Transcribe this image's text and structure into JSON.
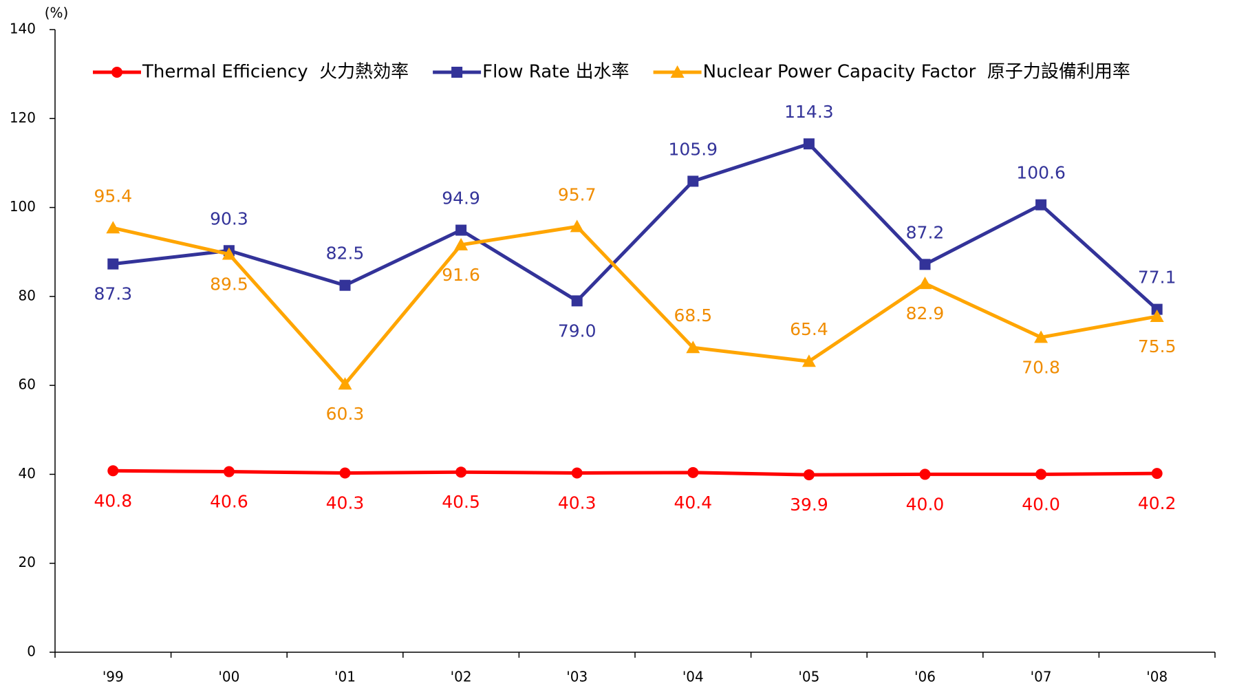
{
  "chart_data": {
    "type": "line",
    "y_label": "(%)",
    "categories": [
      "'99",
      "'00",
      "'01",
      "'02",
      "'03",
      "'04",
      "'05",
      "'06",
      "'07",
      "'08"
    ],
    "series": [
      {
        "name": "Thermal Efficiency  火力熱効率",
        "color": "#ff0000",
        "marker": "circle",
        "values": [
          40.8,
          40.6,
          40.3,
          40.5,
          40.3,
          40.4,
          39.9,
          40.0,
          40.0,
          40.2
        ],
        "value_labels": [
          "40.8",
          "40.6",
          "40.3",
          "40.5",
          "40.3",
          "40.4",
          "39.9",
          "40.0",
          "40.0",
          "40.2"
        ]
      },
      {
        "name": "Flow Rate 出水率",
        "color": "#333399",
        "marker": "square",
        "values": [
          87.3,
          90.3,
          82.5,
          94.9,
          79.0,
          105.9,
          114.3,
          87.2,
          100.6,
          77.1
        ],
        "value_labels": [
          "87.3",
          "90.3",
          "82.5",
          "94.9",
          "79.0",
          "105.9",
          "114.3",
          "87.2",
          "100.6",
          "77.1"
        ]
      },
      {
        "name": "Nuclear Power Capacity Factor  原子力設備利用率",
        "color": "#ffa500",
        "marker": "triangle",
        "values": [
          95.4,
          89.5,
          60.3,
          91.6,
          95.7,
          68.5,
          65.4,
          82.9,
          70.8,
          75.5
        ],
        "value_labels": [
          "95.4",
          "89.5",
          "60.3",
          "91.6",
          "95.7",
          "68.5",
          "65.4",
          "82.9",
          "70.8",
          "75.5"
        ]
      }
    ],
    "ylim": [
      0,
      140
    ],
    "yticks": [
      0,
      20,
      40,
      60,
      80,
      100,
      120,
      140
    ],
    "grid": false
  }
}
